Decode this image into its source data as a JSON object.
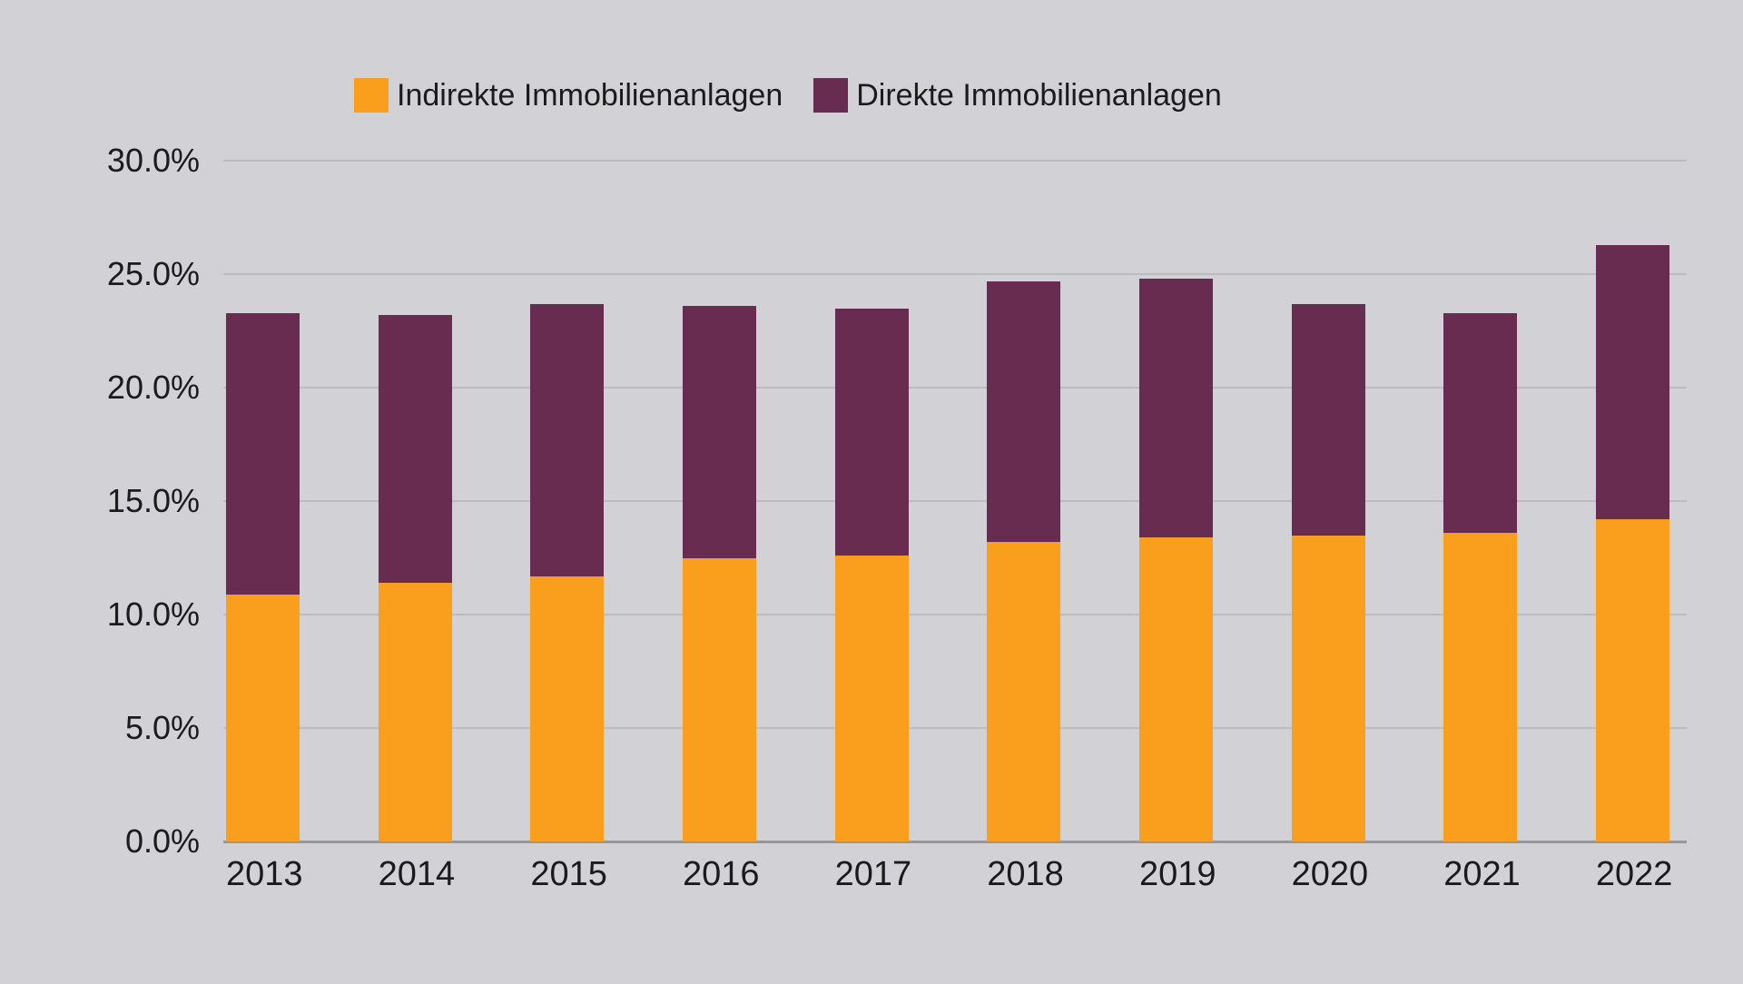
{
  "colors": {
    "background": "#d2d2d6",
    "gridline": "#bcbcc0",
    "baseline": "#97979b",
    "text": "#1b1b1b",
    "indirect_orange": "#f99e1d",
    "direct_plum": "#672c4f"
  },
  "chart_data": {
    "type": "bar",
    "stacked": true,
    "title": "",
    "xlabel": "",
    "ylabel": "",
    "grid": true,
    "legend_position": "top",
    "ylim": [
      0,
      30
    ],
    "categories": [
      "2013",
      "2014",
      "2015",
      "2016",
      "2017",
      "2018",
      "2019",
      "2020",
      "2021",
      "2022"
    ],
    "series": [
      {
        "name": "Indirekte Immobilienanlagen",
        "color": "#f99e1d",
        "values": [
          10.9,
          11.4,
          11.7,
          12.5,
          12.6,
          13.2,
          13.4,
          13.5,
          13.6,
          14.2
        ]
      },
      {
        "name": "Direkte Immobilienanlagen",
        "color": "#672c4f",
        "values": [
          12.4,
          11.8,
          12.0,
          11.1,
          10.9,
          11.5,
          11.4,
          10.2,
          9.7,
          12.1
        ]
      }
    ],
    "totals": [
      23.3,
      23.2,
      23.7,
      23.6,
      23.5,
      24.7,
      24.8,
      23.7,
      23.3,
      26.3
    ],
    "yticks": [
      {
        "value": 0,
        "label": "0.0%"
      },
      {
        "value": 5,
        "label": "5.0%"
      },
      {
        "value": 10,
        "label": "10.0%"
      },
      {
        "value": 15,
        "label": "15.0%"
      },
      {
        "value": 20,
        "label": "20.0%"
      },
      {
        "value": 25,
        "label": "25.0%"
      },
      {
        "value": 30,
        "label": "30.0%"
      }
    ]
  }
}
